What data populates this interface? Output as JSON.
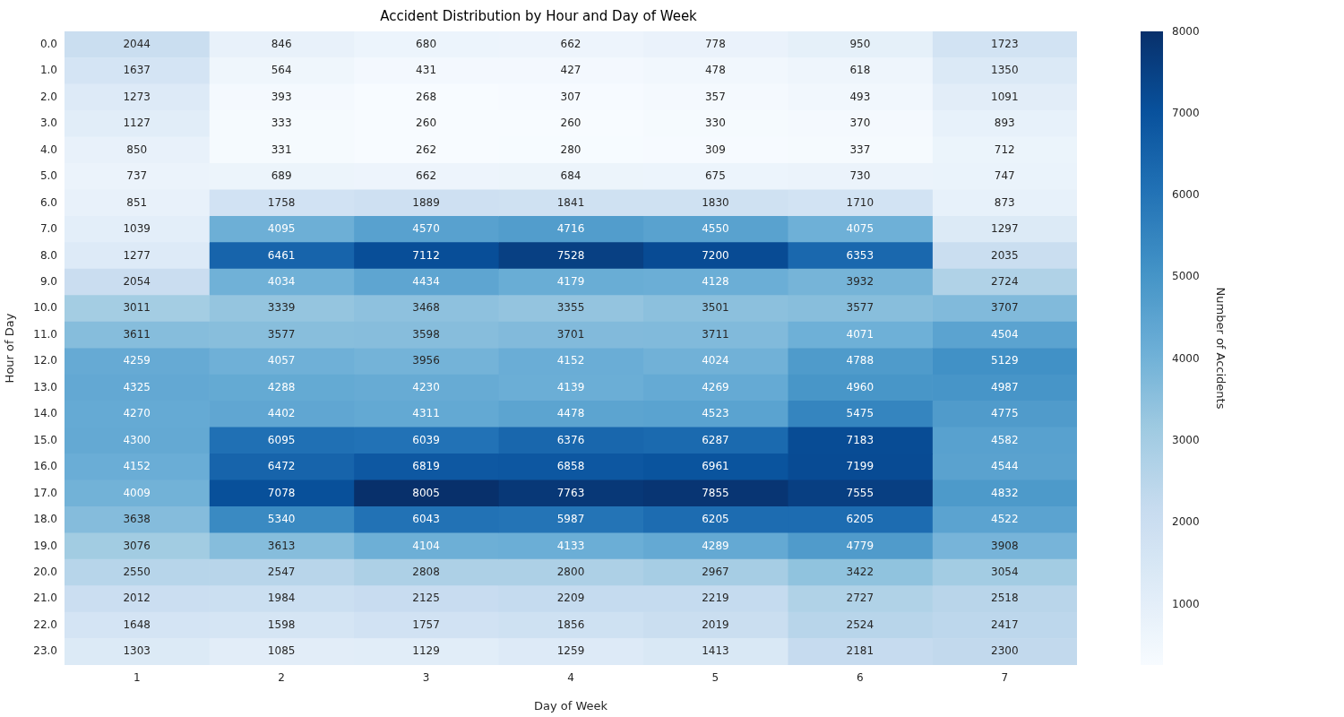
{
  "chart_data": {
    "type": "heatmap",
    "title": "Accident Distribution by Hour and Day of Week",
    "x_label": "Day of Week",
    "y_label": "Hour of Day",
    "x_categories": [
      1,
      2,
      3,
      4,
      5,
      6,
      7
    ],
    "y_categories": [
      "0.0",
      "1.0",
      "2.0",
      "3.0",
      "4.0",
      "5.0",
      "6.0",
      "7.0",
      "8.0",
      "9.0",
      "10.0",
      "11.0",
      "12.0",
      "13.0",
      "14.0",
      "15.0",
      "16.0",
      "17.0",
      "18.0",
      "19.0",
      "20.0",
      "21.0",
      "22.0",
      "23.0"
    ],
    "cells": [
      [
        2044,
        846,
        680,
        662,
        778,
        950,
        1723
      ],
      [
        1637,
        564,
        431,
        427,
        478,
        618,
        1350
      ],
      [
        1273,
        393,
        268,
        307,
        357,
        493,
        1091
      ],
      [
        1127,
        333,
        260,
        260,
        330,
        370,
        893
      ],
      [
        850,
        331,
        262,
        280,
        309,
        337,
        712
      ],
      [
        737,
        689,
        662,
        684,
        675,
        730,
        747
      ],
      [
        851,
        1758,
        1889,
        1841,
        1830,
        1710,
        873
      ],
      [
        1039,
        4095,
        4570,
        4716,
        4550,
        4075,
        1297
      ],
      [
        1277,
        6461,
        7112,
        7528,
        7200,
        6353,
        2035
      ],
      [
        2054,
        4034,
        4434,
        4179,
        4128,
        3932,
        2724
      ],
      [
        3011,
        3339,
        3468,
        3355,
        3501,
        3577,
        3707
      ],
      [
        3611,
        3577,
        3598,
        3701,
        3711,
        4071,
        4504
      ],
      [
        4259,
        4057,
        3956,
        4152,
        4024,
        4788,
        5129
      ],
      [
        4325,
        4288,
        4230,
        4139,
        4269,
        4960,
        4987
      ],
      [
        4270,
        4402,
        4311,
        4478,
        4523,
        5475,
        4775
      ],
      [
        4300,
        6095,
        6039,
        6376,
        6287,
        7183,
        4582
      ],
      [
        4152,
        6472,
        6819,
        6858,
        6961,
        7199,
        4544
      ],
      [
        4009,
        7078,
        8005,
        7763,
        7855,
        7555,
        4832
      ],
      [
        3638,
        5340,
        6043,
        5987,
        6205,
        6205,
        4522
      ],
      [
        3076,
        3613,
        4104,
        4133,
        4289,
        4779,
        3908
      ],
      [
        2550,
        2547,
        2808,
        2800,
        2967,
        3422,
        3054
      ],
      [
        2012,
        1984,
        2125,
        2209,
        2219,
        2727,
        2518
      ],
      [
        1648,
        1598,
        1757,
        1856,
        2019,
        2524,
        2417
      ],
      [
        1303,
        1085,
        1129,
        1259,
        1413,
        2181,
        2300
      ]
    ],
    "color": "Blues",
    "data_labels": true,
    "grid": false,
    "colorbar": {
      "label": "Number of Accidents",
      "range": [
        260,
        8005
      ],
      "ticks": [
        1000,
        2000,
        3000,
        4000,
        5000,
        6000,
        7000,
        8000
      ]
    }
  }
}
